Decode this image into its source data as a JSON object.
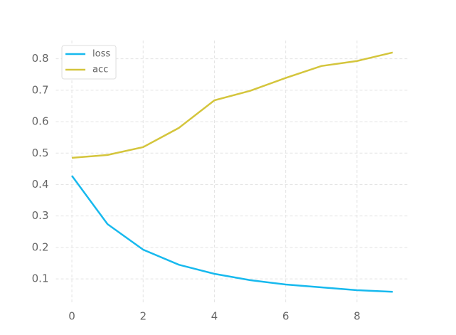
{
  "chart_data": {
    "type": "line",
    "x": [
      0,
      1,
      2,
      3,
      4,
      5,
      6,
      7,
      8,
      9
    ],
    "series": [
      {
        "name": "loss",
        "color": "#17b9ee",
        "values": [
          0.428,
          0.274,
          0.193,
          0.145,
          0.116,
          0.096,
          0.082,
          0.073,
          0.064,
          0.059
        ]
      },
      {
        "name": "acc",
        "color": "#d4c53c",
        "values": [
          0.485,
          0.494,
          0.519,
          0.58,
          0.668,
          0.698,
          0.739,
          0.777,
          0.793,
          0.82
        ]
      }
    ],
    "xlim": [
      -0.45,
      9.45
    ],
    "xticks": [
      0,
      2,
      4,
      6,
      8
    ],
    "ylim": [
      0.021,
      0.858
    ],
    "yticks": [
      0.1,
      0.2,
      0.3,
      0.4,
      0.5,
      0.6,
      0.7,
      0.8
    ],
    "grid": true,
    "legend": "upper-left"
  }
}
